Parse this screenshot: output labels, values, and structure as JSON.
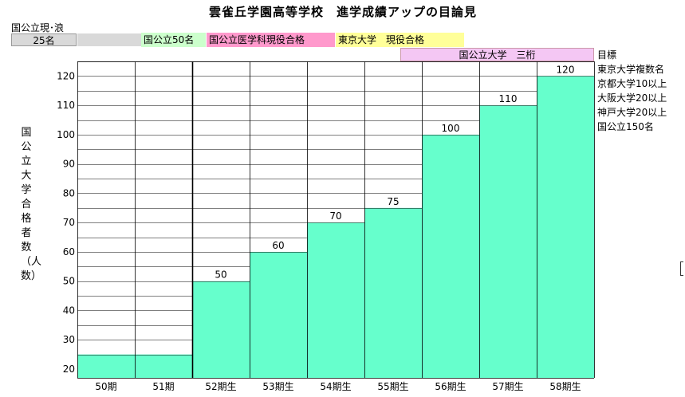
{
  "title": "雲雀丘学園高等学校　進学成績アップの目論見",
  "current": {
    "label": "国公立現･浪",
    "value": "25名"
  },
  "bands": [
    {
      "text": "国公立50名",
      "color": "#ccffcc"
    },
    {
      "text": "国公立医学科現役合格",
      "color": "#ff99cc"
    },
    {
      "text": "東京大学　現役合格",
      "color": "#ffff99"
    }
  ],
  "band_row2": "国公立大学　三桁",
  "goals": [
    "目標",
    "東京大学複数名",
    "京都大学10以上",
    "大阪大学20以上",
    "神戸大学20以上",
    "国公立150名"
  ],
  "colors": {
    "bar": "#66ffcc",
    "grid": "#000000"
  },
  "chart_data": {
    "type": "bar",
    "categories": [
      "50期",
      "51期",
      "52期生",
      "53期生",
      "54期生",
      "55期生",
      "56期生",
      "57期生",
      "58期生"
    ],
    "values": [
      25,
      25,
      50,
      60,
      70,
      75,
      100,
      110,
      120
    ],
    "data_labels": [
      "",
      "",
      "50",
      "60",
      "70",
      "75",
      "100",
      "110",
      "120"
    ],
    "ylabel": "国公立大学合格者数（人数）",
    "yticks": [
      20,
      30,
      40,
      50,
      60,
      70,
      80,
      90,
      100,
      110,
      120
    ],
    "ylim": [
      17,
      125
    ],
    "grid": true
  }
}
